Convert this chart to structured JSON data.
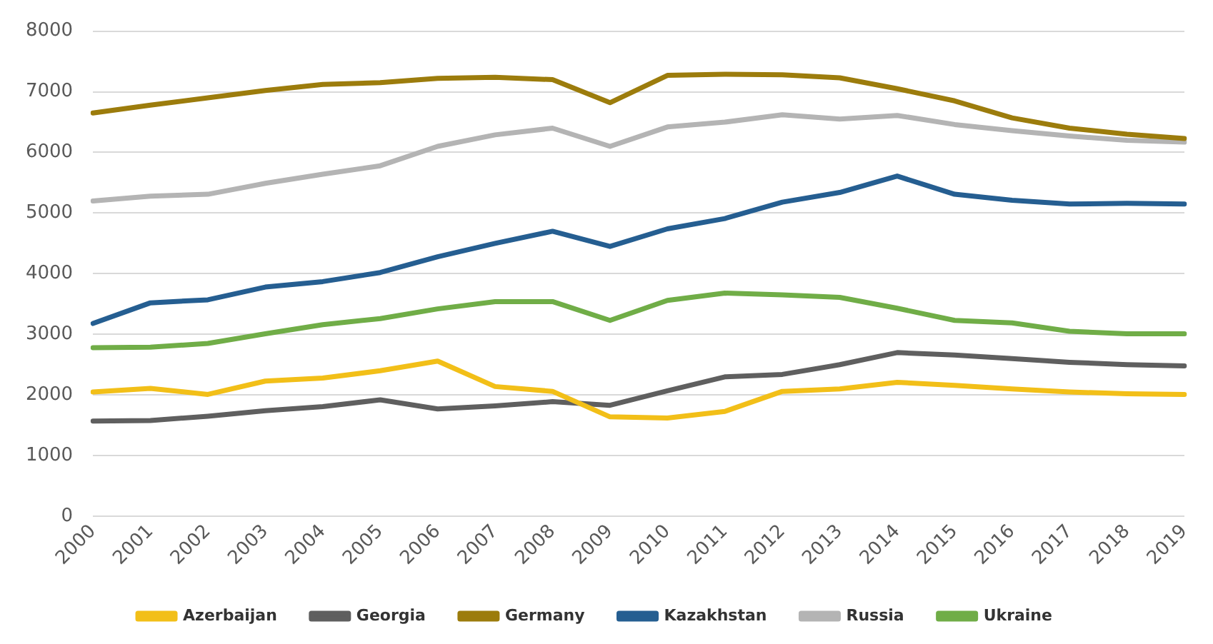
{
  "chart_data": {
    "type": "line",
    "categories": [
      "2000",
      "2001",
      "2002",
      "2003",
      "2004",
      "2005",
      "2006",
      "2007",
      "2008",
      "2009",
      "2010",
      "2011",
      "2012",
      "2013",
      "2014",
      "2015",
      "2016",
      "2017",
      "2018",
      "2019"
    ],
    "series": [
      {
        "name": "Azerbaijan",
        "color": "#f2bf18",
        "values": [
          2050,
          2110,
          2010,
          2230,
          2280,
          2400,
          2560,
          2140,
          2060,
          1640,
          1620,
          1730,
          2060,
          2100,
          2210,
          2160,
          2100,
          2050,
          2020,
          2010
        ]
      },
      {
        "name": "Georgia",
        "color": "#5f5f5f",
        "values": [
          1570,
          1580,
          1650,
          1740,
          1810,
          1920,
          1770,
          1820,
          1890,
          1830,
          2070,
          2300,
          2340,
          2500,
          2700,
          2660,
          2600,
          2540,
          2500,
          2480
        ]
      },
      {
        "name": "Germany",
        "color": "#9c7c0c",
        "values": [
          6650,
          6780,
          6900,
          7020,
          7120,
          7150,
          7220,
          7240,
          7200,
          6820,
          7270,
          7290,
          7280,
          7230,
          7050,
          6850,
          6570,
          6400,
          6300,
          6230
        ]
      },
      {
        "name": "Kazakhstan",
        "color": "#255e91",
        "values": [
          3180,
          3520,
          3570,
          3780,
          3870,
          4020,
          4280,
          4500,
          4700,
          4450,
          4740,
          4910,
          5180,
          5340,
          5610,
          5310,
          5210,
          5150,
          5160,
          5150
        ]
      },
      {
        "name": "Russia",
        "color": "#b4b4b4",
        "values": [
          5200,
          5280,
          5310,
          5490,
          5640,
          5780,
          6100,
          6290,
          6400,
          6100,
          6420,
          6500,
          6620,
          6550,
          6610,
          6460,
          6360,
          6270,
          6200,
          6170
        ]
      },
      {
        "name": "Ukraine",
        "color": "#70ad47",
        "values": [
          2780,
          2790,
          2850,
          3010,
          3160,
          3260,
          3420,
          3540,
          3540,
          3230,
          3560,
          3680,
          3650,
          3610,
          3430,
          3230,
          3190,
          3050,
          3010,
          3010
        ]
      }
    ],
    "ylim": [
      0,
      8000
    ],
    "yticks": [
      0,
      1000,
      2000,
      3000,
      4000,
      5000,
      6000,
      7000,
      8000
    ],
    "grid": "y",
    "legend": "bottom",
    "marker": "none",
    "line_style": "solid"
  }
}
